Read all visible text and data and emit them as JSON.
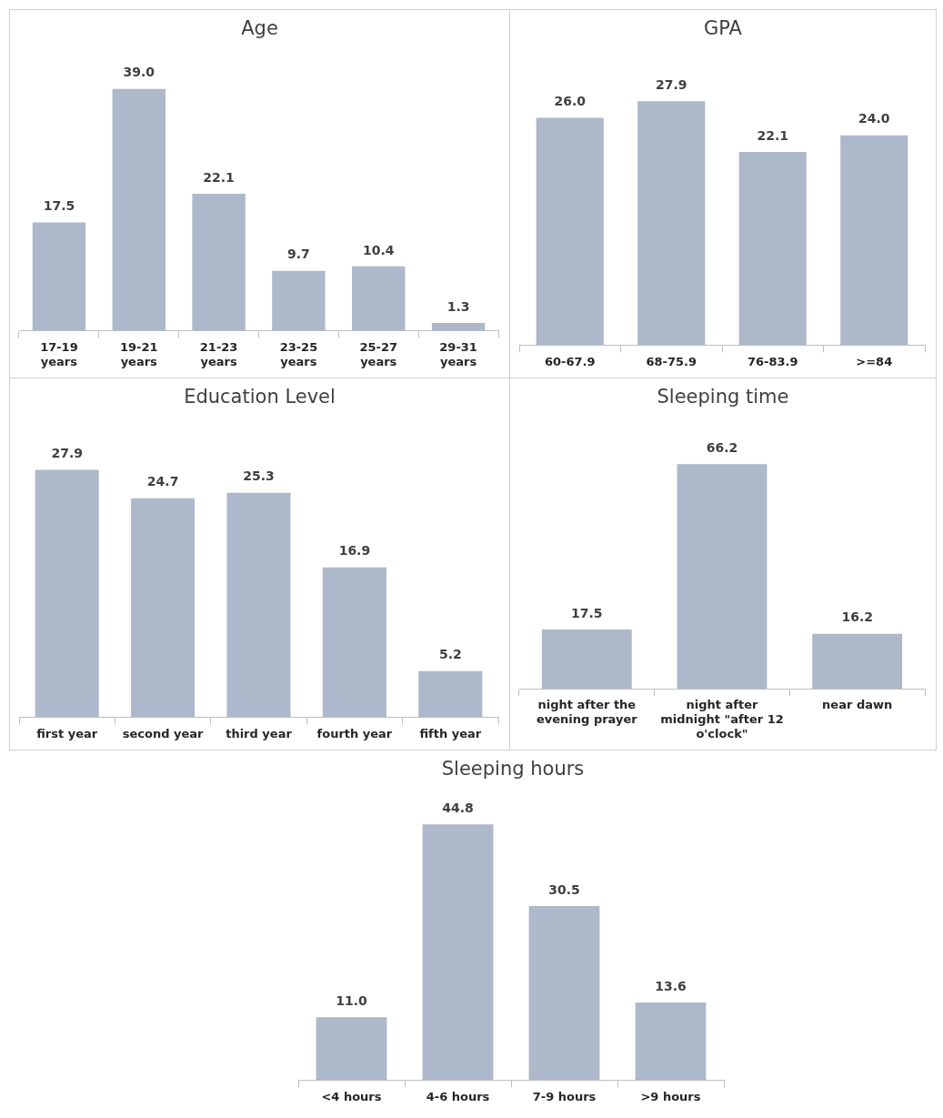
{
  "chart_data": [
    {
      "type": "bar",
      "title": "Age",
      "categories": [
        "17-19 years",
        "19-21 years",
        "21-23 years",
        "23-25 years",
        "25-27 years",
        "29-31 years"
      ],
      "values": [
        17.5,
        39.0,
        22.1,
        9.7,
        10.4,
        1.3
      ],
      "value_labels": [
        "17.5",
        "39.0",
        "22.1",
        "9.7",
        "10.4",
        "1.3"
      ],
      "color": "#adb9ca"
    },
    {
      "type": "bar",
      "title": "GPA",
      "categories": [
        "60-67.9",
        "68-75.9",
        "76-83.9",
        ">=84"
      ],
      "values": [
        26.0,
        27.9,
        22.1,
        24.0
      ],
      "value_labels": [
        "26.0",
        "27.9",
        "22.1",
        "24.0"
      ],
      "color": "#adb9ca"
    },
    {
      "type": "bar",
      "title": "Education Level",
      "categories": [
        "first year",
        "second year",
        "third year",
        "fourth year",
        "fifth year"
      ],
      "values": [
        27.9,
        24.7,
        25.3,
        16.9,
        5.2
      ],
      "value_labels": [
        "27.9",
        "24.7",
        "25.3",
        "16.9",
        "5.2"
      ],
      "color": "#adb9ca"
    },
    {
      "type": "bar",
      "title": "Sleeping time",
      "categories": [
        "night after the evening prayer",
        "night after midnight \"after 12 o'clock\"",
        "near dawn"
      ],
      "values": [
        17.5,
        66.2,
        16.2
      ],
      "value_labels": [
        "17.5",
        "66.2",
        "16.2"
      ],
      "color": "#adb9ca"
    },
    {
      "type": "bar",
      "title": "Sleeping hours",
      "categories": [
        "<4 hours",
        "4-6 hours",
        "7-9 hours",
        ">9 hours"
      ],
      "values": [
        11.0,
        44.8,
        30.5,
        13.6
      ],
      "value_labels": [
        "11.0",
        "44.8",
        "30.5",
        "13.6"
      ],
      "color": "#adb9ca"
    }
  ]
}
